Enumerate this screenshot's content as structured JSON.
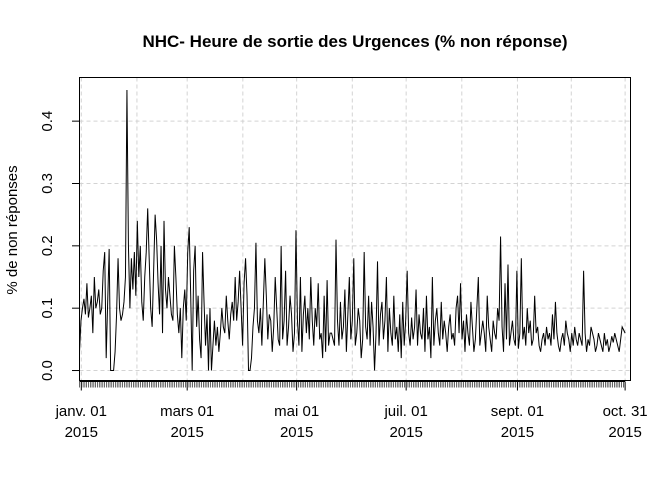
{
  "chart_data": {
    "type": "line",
    "title": "NHC- Heure de sortie des Urgences (% non réponse)",
    "xlabel": "",
    "ylabel": "% de non réponses",
    "x_start": "2014-12-31",
    "x_end": "2015-10-31",
    "xlim": [
      "2014-12-31",
      "2015-11-03"
    ],
    "ylim": [
      -0.016,
      0.47
    ],
    "grid": true,
    "x_ticks": [
      {
        "date": "2015-01-01",
        "label_line1": "janv. 01",
        "label_line2": "2015"
      },
      {
        "date": "2015-03-01",
        "label_line1": "mars 01",
        "label_line2": "2015"
      },
      {
        "date": "2015-05-01",
        "label_line1": "mai 01",
        "label_line2": "2015"
      },
      {
        "date": "2015-07-01",
        "label_line1": "juil. 01",
        "label_line2": "2015"
      },
      {
        "date": "2015-09-01",
        "label_line1": "sept. 01",
        "label_line2": "2015"
      },
      {
        "date": "2015-10-31",
        "label_line1": "oct. 31",
        "label_line2": "2015"
      }
    ],
    "y_ticks": [
      {
        "value": 0.0,
        "label": "0.0"
      },
      {
        "value": 0.1,
        "label": "0.1"
      },
      {
        "value": 0.2,
        "label": "0.2"
      },
      {
        "value": 0.3,
        "label": "0.3"
      },
      {
        "value": 0.4,
        "label": "0.4"
      }
    ],
    "values": [
      0.03,
      0.08,
      0.1,
      0.115,
      0.09,
      0.14,
      0.085,
      0.1,
      0.12,
      0.06,
      0.15,
      0.1,
      0.11,
      0.13,
      0.09,
      0.1,
      0.16,
      0.19,
      0.02,
      0.11,
      0.195,
      0.0,
      0.0,
      0.0,
      0.03,
      0.09,
      0.18,
      0.1,
      0.08,
      0.09,
      0.11,
      0.15,
      0.45,
      0.2,
      0.1,
      0.18,
      0.13,
      0.19,
      0.12,
      0.24,
      0.15,
      0.2,
      0.11,
      0.08,
      0.15,
      0.19,
      0.26,
      0.18,
      0.1,
      0.07,
      0.16,
      0.25,
      0.21,
      0.14,
      0.09,
      0.2,
      0.06,
      0.24,
      0.13,
      0.1,
      0.15,
      0.12,
      0.09,
      0.08,
      0.2,
      0.15,
      0.09,
      0.06,
      0.1,
      0.02,
      0.1,
      0.13,
      0.08,
      0.19,
      0.23,
      0.12,
      0.0,
      0.16,
      0.2,
      0.07,
      0.12,
      0.05,
      0.02,
      0.19,
      0.11,
      0.04,
      0.09,
      0.0,
      0.1,
      0.0,
      0.04,
      0.08,
      0.04,
      0.07,
      0.03,
      0.06,
      0.1,
      0.07,
      0.06,
      0.12,
      0.08,
      0.05,
      0.09,
      0.11,
      0.08,
      0.15,
      0.08,
      0.11,
      0.16,
      0.1,
      0.04,
      0.14,
      0.18,
      0.12,
      0.0,
      0.0,
      0.02,
      0.07,
      0.1,
      0.205,
      0.08,
      0.06,
      0.1,
      0.04,
      0.11,
      0.18,
      0.12,
      0.05,
      0.09,
      0.08,
      0.03,
      0.07,
      0.15,
      0.1,
      0.05,
      0.04,
      0.2,
      0.05,
      0.08,
      0.16,
      0.04,
      0.07,
      0.12,
      0.09,
      0.03,
      0.06,
      0.225,
      0.08,
      0.04,
      0.15,
      0.03,
      0.09,
      0.12,
      0.06,
      0.1,
      0.05,
      0.15,
      0.08,
      0.04,
      0.1,
      0.07,
      0.14,
      0.05,
      0.06,
      0.02,
      0.12,
      0.03,
      0.145,
      0.04,
      0.06,
      0.06,
      0.05,
      0.04,
      0.21,
      0.08,
      0.04,
      0.11,
      0.05,
      0.07,
      0.13,
      0.03,
      0.09,
      0.15,
      0.05,
      0.08,
      0.18,
      0.04,
      0.06,
      0.1,
      0.08,
      0.02,
      0.05,
      0.19,
      0.07,
      0.05,
      0.12,
      0.04,
      0.11,
      0.07,
      0.0,
      0.06,
      0.175,
      0.04,
      0.09,
      0.11,
      0.05,
      0.08,
      0.15,
      0.03,
      0.1,
      0.06,
      0.04,
      0.12,
      0.05,
      0.07,
      0.03,
      0.09,
      0.02,
      0.11,
      0.04,
      0.08,
      0.16,
      0.06,
      0.04,
      0.085,
      0.05,
      0.07,
      0.13,
      0.04,
      0.09,
      0.06,
      0.05,
      0.1,
      0.03,
      0.12,
      0.05,
      0.07,
      0.02,
      0.15,
      0.04,
      0.08,
      0.1,
      0.06,
      0.04,
      0.11,
      0.05,
      0.08,
      0.06,
      0.03,
      0.07,
      0.09,
      0.05,
      0.06,
      0.04,
      0.1,
      0.12,
      0.06,
      0.14,
      0.05,
      0.08,
      0.03,
      0.09,
      0.06,
      0.04,
      0.11,
      0.07,
      0.03,
      0.05,
      0.1,
      0.15,
      0.04,
      0.06,
      0.08,
      0.06,
      0.03,
      0.12,
      0.07,
      0.05,
      0.03,
      0.08,
      0.06,
      0.05,
      0.1,
      0.08,
      0.215,
      0.07,
      0.03,
      0.14,
      0.05,
      0.17,
      0.04,
      0.06,
      0.08,
      0.05,
      0.04,
      0.16,
      0.035,
      0.06,
      0.18,
      0.05,
      0.07,
      0.04,
      0.1,
      0.06,
      0.08,
      0.04,
      0.05,
      0.12,
      0.06,
      0.07,
      0.04,
      0.03,
      0.05,
      0.06,
      0.04,
      0.07,
      0.05,
      0.06,
      0.04,
      0.09,
      0.05,
      0.11,
      0.06,
      0.04,
      0.03,
      0.05,
      0.06,
      0.04,
      0.08,
      0.06,
      0.05,
      0.03,
      0.06,
      0.04,
      0.07,
      0.05,
      0.04,
      0.06,
      0.05,
      0.04,
      0.16,
      0.06,
      0.03,
      0.05,
      0.04,
      0.07,
      0.06,
      0.05,
      0.03,
      0.04,
      0.06,
      0.05,
      0.04,
      0.03,
      0.06,
      0.04,
      0.05,
      0.03,
      0.04,
      0.055,
      0.045,
      0.06,
      0.05,
      0.04,
      0.03,
      0.05,
      0.07,
      0.065,
      0.06
    ]
  }
}
